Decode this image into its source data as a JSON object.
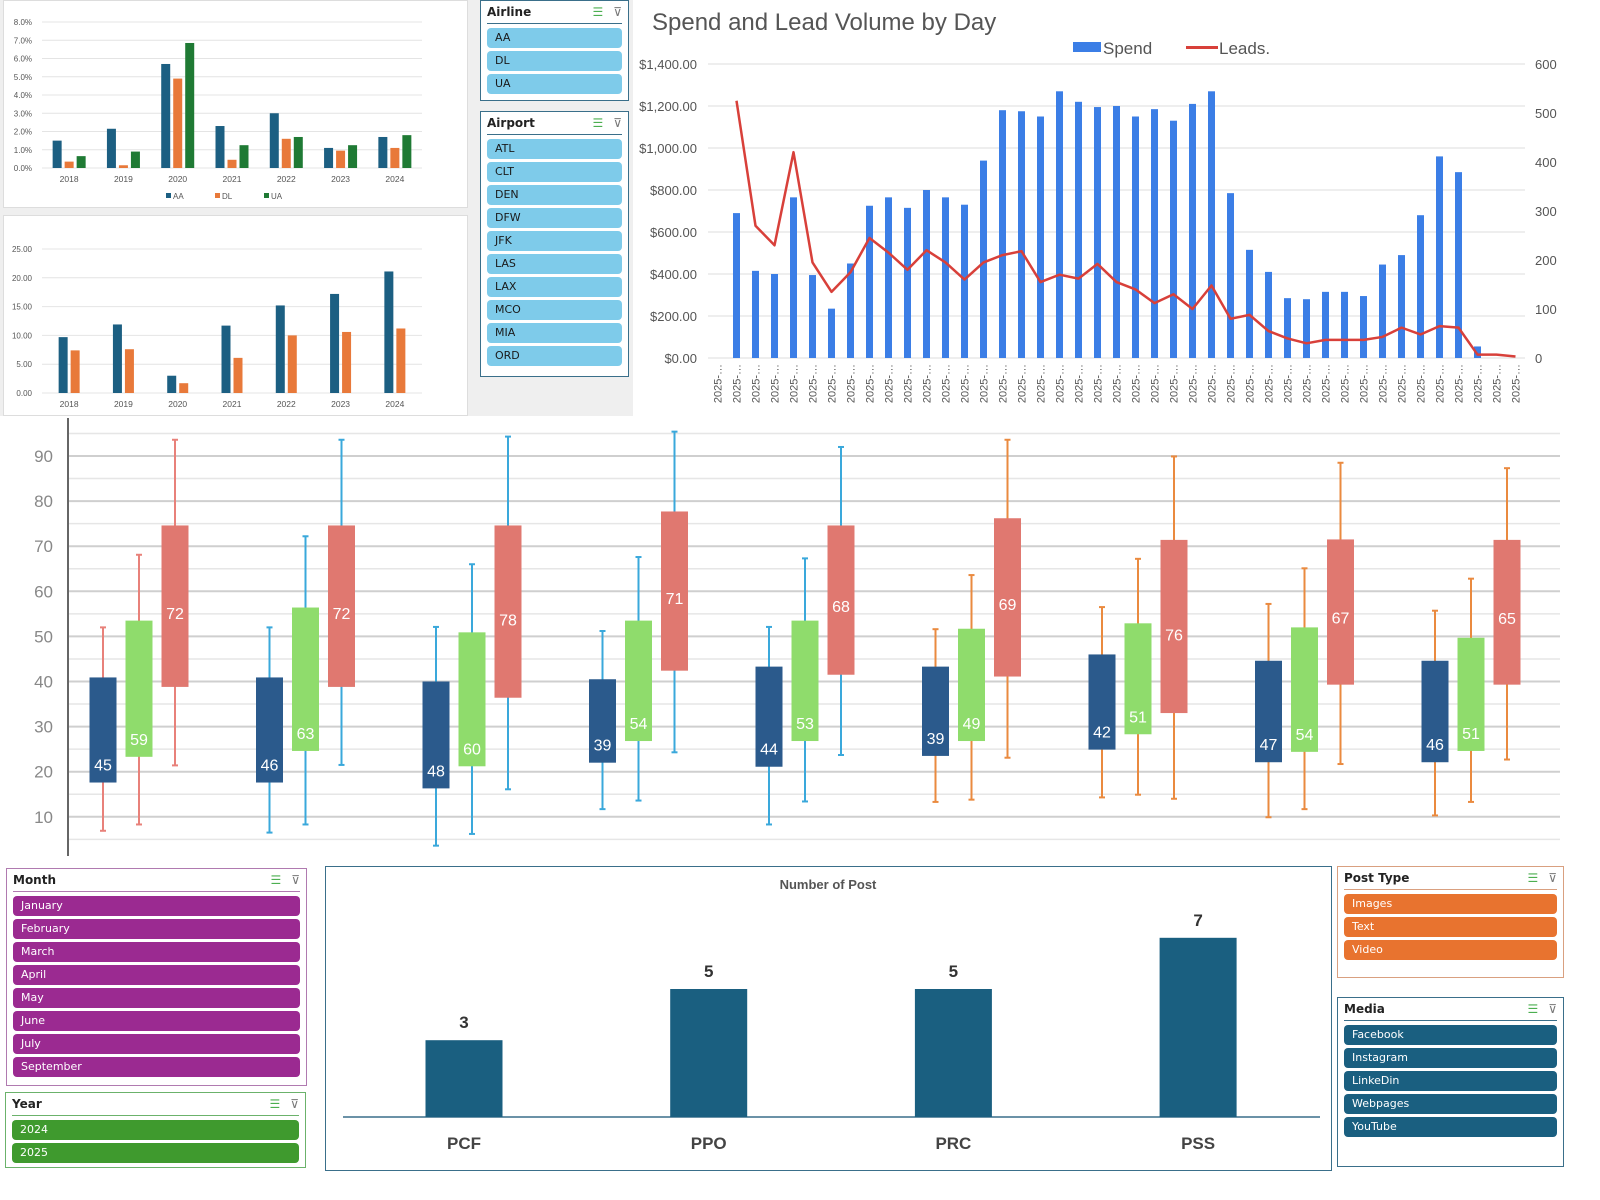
{
  "rate_chart": {
    "chart_data": {
      "type": "bar",
      "categories": [
        "2018",
        "2019",
        "2020",
        "2021",
        "2022",
        "2023",
        "2024"
      ],
      "ylim": [
        0,
        8
      ],
      "y_ticks": [
        "0.0%",
        "1.0%",
        "2.0%",
        "3.0%",
        "4.0%",
        "5.0%",
        "6.0%",
        "7.0%",
        "8.0%"
      ],
      "legend_position": "bottom",
      "series": [
        {
          "name": "AA",
          "color": "#1c5f82",
          "values": [
            1.5,
            2.15,
            5.7,
            2.3,
            3.0,
            1.1,
            1.7
          ]
        },
        {
          "name": "DL",
          "color": "#e8793a",
          "values": [
            0.35,
            0.15,
            4.9,
            0.45,
            1.6,
            0.95,
            1.1
          ]
        },
        {
          "name": "UA",
          "color": "#1f7a34",
          "values": [
            0.65,
            0.9,
            6.85,
            1.25,
            1.7,
            1.25,
            1.8
          ]
        }
      ]
    }
  },
  "value_chart": {
    "chart_data": {
      "type": "bar",
      "categories": [
        "2018",
        "2019",
        "2020",
        "2021",
        "2022",
        "2023",
        "2024"
      ],
      "ylim": [
        0,
        25
      ],
      "y_ticks": [
        "0.00",
        "5.00",
        "10.00",
        "15.00",
        "20.00",
        "25.00"
      ],
      "series": [
        {
          "color": "#1c5f82",
          "values": [
            9.7,
            11.9,
            3.0,
            11.7,
            15.2,
            17.2,
            21.1
          ]
        },
        {
          "color": "#e8793a",
          "values": [
            7.4,
            7.6,
            1.7,
            6.1,
            10.0,
            10.6,
            11.2
          ]
        }
      ]
    }
  },
  "airline_slicer": {
    "title": "Airline",
    "color": "#7ecbea",
    "items": [
      "AA",
      "DL",
      "UA"
    ]
  },
  "airport_slicer": {
    "title": "Airport",
    "color": "#7ecbea",
    "items": [
      "ATL",
      "CLT",
      "DEN",
      "DFW",
      "JFK",
      "LAS",
      "LAX",
      "MCO",
      "MIA",
      "ORD"
    ]
  },
  "spend_chart": {
    "chart_data": {
      "type": "bar+line",
      "title": "Spend and Lead Volume by Day",
      "legend_position": "top",
      "x_labels": [
        "2025-…",
        "2025-…",
        "2025-…",
        "2025-…",
        "2025-…",
        "2025-…",
        "2025-…",
        "2025-…",
        "2025-…",
        "2025-…",
        "2025-…",
        "2025-…",
        "2025-…",
        "2025-…",
        "2025-…",
        "2025-…",
        "2025-…",
        "2025-…",
        "2025-…",
        "2025-…",
        "2025-…",
        "2025-…",
        "2025-…",
        "2025-…",
        "2025-…",
        "2025-…",
        "2025-…",
        "2025-…",
        "2025-…",
        "2025-…",
        "2025-…",
        "2025-…",
        "2025-…",
        "2025-…",
        "2025-…",
        "2025-…",
        "2025-…",
        "2025-…",
        "2025-…",
        "2025-…",
        "2025-…",
        "2025-…",
        "2025-…"
      ],
      "y_left": {
        "range": [
          0,
          1400
        ],
        "ticks": [
          "$0.00",
          "$200.00",
          "$400.00",
          "$600.00",
          "$800.00",
          "$1,000.00",
          "$1,200.00",
          "$1,400.00"
        ]
      },
      "y_right": {
        "range": [
          0,
          600
        ],
        "ticks": [
          "0",
          "100",
          "200",
          "300",
          "400",
          "500",
          "600"
        ]
      },
      "series": [
        {
          "name": "Spend",
          "type": "bar",
          "axis": "left",
          "color": "#3b7ee6",
          "values": [
            null,
            690,
            415,
            400,
            765,
            395,
            235,
            450,
            725,
            765,
            715,
            800,
            765,
            730,
            940,
            1180,
            1175,
            1150,
            1270,
            1220,
            1195,
            1200,
            1150,
            1185,
            1130,
            1210,
            1270,
            785,
            515,
            410,
            285,
            280,
            315,
            315,
            295,
            445,
            490,
            680,
            960,
            885,
            55,
            0,
            0
          ]
        },
        {
          "name": "Leads.",
          "type": "line",
          "axis": "right",
          "color": "#d8403a",
          "values": [
            null,
            525,
            270,
            230,
            420,
            195,
            135,
            175,
            245,
            215,
            180,
            220,
            195,
            160,
            195,
            210,
            218,
            155,
            170,
            162,
            192,
            155,
            140,
            112,
            130,
            100,
            148,
            80,
            88,
            55,
            40,
            30,
            37,
            37,
            37,
            43,
            62,
            48,
            65,
            62,
            7,
            7,
            3
          ]
        }
      ]
    }
  },
  "box_chart": {
    "chart_data": {
      "type": "boxplot",
      "ylim": [
        4,
        97
      ],
      "y_ticks": [
        "10",
        "20",
        "30",
        "40",
        "50",
        "60",
        "70",
        "80",
        "90"
      ],
      "series_colors": [
        "#2b5a8c",
        "#8fdc6c",
        "#e07870"
      ],
      "groups": [
        {
          "whisker_color": "#e8817a",
          "boxes": [
            {
              "min": 6.9,
              "q1": 17.6,
              "q3": 40.9,
              "max": 52,
              "label": "45"
            },
            {
              "min": 8.3,
              "q1": 23.3,
              "q3": 53.5,
              "max": 68.1,
              "label": "59"
            },
            {
              "min": 21.4,
              "q1": 38.8,
              "q3": 74.6,
              "max": 93.6,
              "label": "72"
            }
          ]
        },
        {
          "whisker_color": "#3aa8db",
          "boxes": [
            {
              "min": 6.5,
              "q1": 17.6,
              "q3": 40.9,
              "max": 52,
              "label": "46"
            },
            {
              "min": 8.3,
              "q1": 24.6,
              "q3": 56.4,
              "max": 72.2,
              "label": "63"
            },
            {
              "min": 21.5,
              "q1": 38.8,
              "q3": 74.6,
              "max": 93.6,
              "label": "72"
            }
          ]
        },
        {
          "whisker_color": "#3aa8db",
          "boxes": [
            {
              "min": 3.6,
              "q1": 16.3,
              "q3": 40,
              "max": 52.1,
              "label": "48"
            },
            {
              "min": 6.2,
              "q1": 21.2,
              "q3": 50.9,
              "max": 66,
              "label": "60"
            },
            {
              "min": 16.1,
              "q1": 36.4,
              "q3": 74.6,
              "max": 94.3,
              "label": "78"
            }
          ]
        },
        {
          "whisker_color": "#3aa8db",
          "boxes": [
            {
              "min": 11.7,
              "q1": 22,
              "q3": 40.5,
              "max": 51.2,
              "label": "39"
            },
            {
              "min": 13.6,
              "q1": 26.8,
              "q3": 53.5,
              "max": 67.6,
              "label": "54"
            },
            {
              "min": 24.3,
              "q1": 42.4,
              "q3": 77.7,
              "max": 95.4,
              "label": "71"
            }
          ]
        },
        {
          "whisker_color": "#3aa8db",
          "boxes": [
            {
              "min": 8.3,
              "q1": 21.1,
              "q3": 43.3,
              "max": 52.1,
              "label": "44"
            },
            {
              "min": 13.4,
              "q1": 26.8,
              "q3": 53.5,
              "max": 67.3,
              "label": "53"
            },
            {
              "min": 23.7,
              "q1": 41.5,
              "q3": 74.6,
              "max": 92,
              "label": "68"
            }
          ]
        },
        {
          "whisker_color": "#ea8a3f",
          "boxes": [
            {
              "min": 13.3,
              "q1": 23.5,
              "q3": 43.3,
              "max": 51.6,
              "label": "39"
            },
            {
              "min": 13.8,
              "q1": 26.8,
              "q3": 51.7,
              "max": 63.6,
              "label": "49"
            },
            {
              "min": 23.1,
              "q1": 41.1,
              "q3": 76.2,
              "max": 93.6,
              "label": "69"
            }
          ]
        },
        {
          "whisker_color": "#ea8a3f",
          "boxes": [
            {
              "min": 14.3,
              "q1": 24.9,
              "q3": 46,
              "max": 56.5,
              "label": "42"
            },
            {
              "min": 14.9,
              "q1": 28.3,
              "q3": 52.9,
              "max": 67.2,
              "label": "51"
            },
            {
              "min": 14,
              "q1": 33,
              "q3": 71.4,
              "max": 89.9,
              "label": "76"
            }
          ]
        },
        {
          "whisker_color": "#ea8a3f",
          "boxes": [
            {
              "min": 9.9,
              "q1": 22.1,
              "q3": 44.6,
              "max": 57.2,
              "label": "47"
            },
            {
              "min": 11.7,
              "q1": 24.4,
              "q3": 52,
              "max": 65.1,
              "label": "54"
            },
            {
              "min": 21.7,
              "q1": 39.3,
              "q3": 71.5,
              "max": 88.5,
              "label": "67"
            }
          ]
        },
        {
          "whisker_color": "#ea8a3f",
          "boxes": [
            {
              "min": 10.3,
              "q1": 22.1,
              "q3": 44.6,
              "max": 55.7,
              "label": "46"
            },
            {
              "min": 13.3,
              "q1": 24.6,
              "q3": 49.7,
              "max": 62.8,
              "label": "51"
            },
            {
              "min": 22.7,
              "q1": 39.3,
              "q3": 71.4,
              "max": 87.3,
              "label": "65"
            }
          ]
        }
      ]
    }
  },
  "month_slicer": {
    "title": "Month",
    "color": "#9b2a91",
    "border": "#b07ab0",
    "items": [
      "January",
      "February",
      "March",
      "April",
      "May",
      "June",
      "July",
      "September"
    ]
  },
  "year_slicer": {
    "title": "Year",
    "color": "#3f9a2e",
    "border": "#6bb26b",
    "items": [
      "2024",
      "2025"
    ]
  },
  "posts_chart": {
    "chart_data": {
      "type": "bar",
      "title": "Number of Post",
      "categories": [
        "PCF",
        "PPO",
        "PRC",
        "PSS"
      ],
      "values": [
        3,
        5,
        5,
        7
      ],
      "data_labels": [
        "3",
        "5",
        "5",
        "7"
      ],
      "color": "#1a5f80"
    }
  },
  "post_type_slicer": {
    "title": "Post Type",
    "color": "#e8732f",
    "border": "#d9a080",
    "items": [
      "Images",
      "Text",
      "Video"
    ]
  },
  "media_slicer": {
    "title": "Media",
    "color": "#1a5f80",
    "border": "#3a6f8a",
    "items": [
      "Facebook",
      "Instagram",
      "LinkeDin",
      "Webpages",
      "YouTube"
    ]
  },
  "icons": {
    "multiselect": "multi-select-icon",
    "clear_filter": "clear-filter-icon"
  }
}
